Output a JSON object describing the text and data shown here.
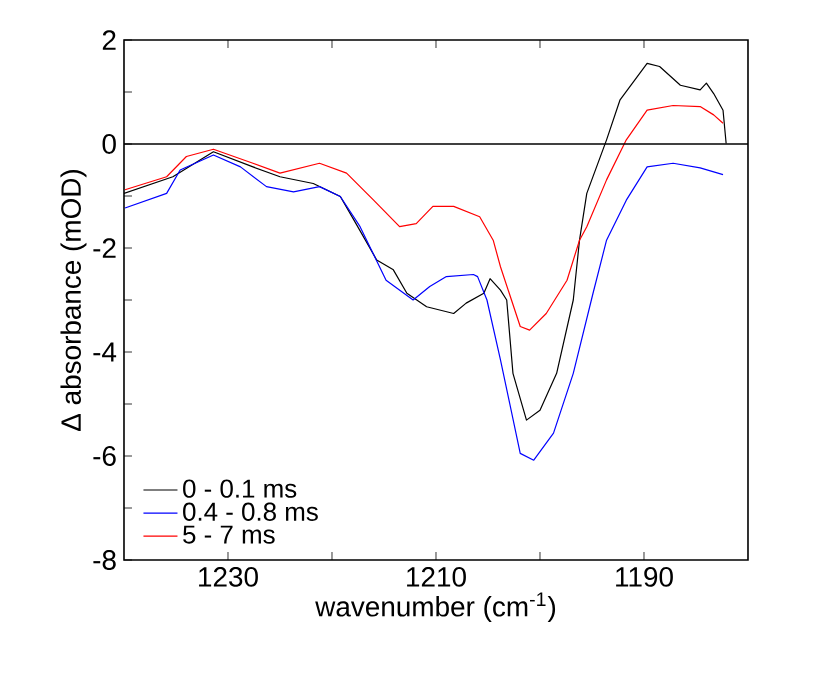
{
  "chart_data": {
    "type": "line",
    "xlabel": "wavenumber (cm$^{-1}$)",
    "ylabel": "Δ absorbance (mOD)",
    "xlim": [
      1240,
      1180
    ],
    "ylim": [
      -8,
      2
    ],
    "xticks": [
      1230,
      {
        "value": 1220,
        "label": null
      },
      1210,
      {
        "value": 1200,
        "label": null
      },
      1190
    ],
    "yticks": [
      2,
      {
        "value": 1,
        "label": null
      },
      0,
      {
        "value": -1,
        "label": null
      },
      -2,
      {
        "value": -3,
        "label": null
      },
      -4,
      {
        "value": -5,
        "label": null
      },
      -6,
      {
        "value": -7,
        "label": null
      },
      -8
    ],
    "legend": "bottom left",
    "line_style": "solid",
    "grid": false,
    "ref_lines": [
      {
        "axis": "y",
        "value": 0,
        "color": "#000000"
      }
    ],
    "series": [
      {
        "name": "0 - 0.1 ms",
        "color": "#000000",
        "x": [
          1240,
          1235.3,
          1231.4,
          1227.6,
          1225,
          1221.8,
          1219.2,
          1217.9,
          1215.7,
          1214.1,
          1212.8,
          1210.9,
          1208.3,
          1207.1,
          1205.4,
          1204.8,
          1203.8,
          1203.2,
          1202.6,
          1201.3,
          1200,
          1198.4,
          1196.8,
          1196.2,
          1195.5,
          1193.6,
          1192.3,
          1189.7,
          1188.5,
          1186.5,
          1184.6,
          1184,
          1183.3,
          1182.4,
          1182.1
        ],
        "values": [
          -0.95,
          -0.63,
          -0.15,
          -0.44,
          -0.63,
          -0.76,
          -1.01,
          -1.46,
          -2.23,
          -2.42,
          -2.87,
          -3.13,
          -3.26,
          -3.06,
          -2.87,
          -2.59,
          -2.81,
          -3.0,
          -4.41,
          -5.31,
          -5.12,
          -4.41,
          -3.0,
          -1.85,
          -0.95,
          0.08,
          0.85,
          1.55,
          1.49,
          1.13,
          1.04,
          1.17,
          0.97,
          0.65,
          0.01
        ]
      },
      {
        "name": "0.4 - 0.8 ms",
        "color": "#0000ff",
        "x": [
          1239.9,
          1235.9,
          1234.6,
          1231.4,
          1228.8,
          1226.3,
          1223.7,
          1221.2,
          1219.2,
          1217.3,
          1214.8,
          1212.2,
          1210.6,
          1209,
          1206.4,
          1206,
          1205.1,
          1203.8,
          1201.9,
          1200.6,
          1198.7,
          1196.8,
          1194.9,
          1193.6,
          1191.7,
          1189.7,
          1187.2,
          1184.6,
          1182.4
        ],
        "values": [
          -1.23,
          -0.95,
          -0.5,
          -0.21,
          -0.44,
          -0.82,
          -0.92,
          -0.82,
          -1.01,
          -1.59,
          -2.62,
          -3.0,
          -2.74,
          -2.55,
          -2.51,
          -2.55,
          -3.0,
          -4.15,
          -5.95,
          -6.08,
          -5.56,
          -4.41,
          -2.87,
          -1.85,
          -1.08,
          -0.44,
          -0.37,
          -0.46,
          -0.59
        ]
      },
      {
        "name": "5 - 7 ms",
        "color": "#ff0000",
        "x": [
          1239.9,
          1235.9,
          1234,
          1231.4,
          1227.6,
          1225,
          1221.2,
          1218.6,
          1216,
          1213.5,
          1211.9,
          1210.3,
          1208.3,
          1205.8,
          1204.5,
          1203.8,
          1201.9,
          1201,
          1199.4,
          1197.4,
          1196.2,
          1195.5,
          1193.6,
          1191.7,
          1189.7,
          1187.2,
          1184.6,
          1183.3,
          1182.4
        ],
        "values": [
          -0.88,
          -0.63,
          -0.24,
          -0.1,
          -0.37,
          -0.56,
          -0.37,
          -0.56,
          -1.08,
          -1.59,
          -1.53,
          -1.2,
          -1.2,
          -1.4,
          -1.85,
          -2.36,
          -3.51,
          -3.58,
          -3.26,
          -2.62,
          -1.85,
          -1.59,
          -0.69,
          0.08,
          0.65,
          0.74,
          0.72,
          0.56,
          0.4
        ]
      }
    ]
  }
}
